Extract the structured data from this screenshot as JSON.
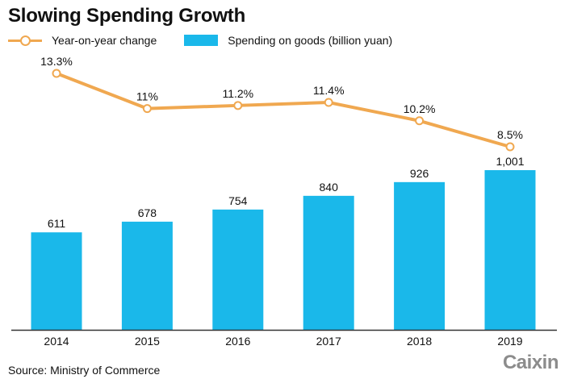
{
  "chart_data": {
    "type": "bar",
    "title": "Slowing Spending Growth",
    "categories": [
      "2014",
      "2015",
      "2016",
      "2017",
      "2018",
      "2019"
    ],
    "series": [
      {
        "name": "Spending on goods (billion yuan)",
        "type": "bar",
        "color": "#1ab8ea",
        "values": [
          611,
          678,
          754,
          840,
          926,
          1001
        ],
        "labels": [
          "611",
          "678",
          "754",
          "840",
          "926",
          "1,001"
        ]
      },
      {
        "name": "Year-on-year change",
        "type": "line",
        "color": "#f0a850",
        "values": [
          13.3,
          11.0,
          11.2,
          11.4,
          10.2,
          8.5
        ],
        "labels": [
          "13.3%",
          "11%",
          "11.2%",
          "11.4%",
          "10.2%",
          "8.5%"
        ]
      }
    ],
    "xlabel": "",
    "ylabel": "",
    "grid": false,
    "legend": "top-left",
    "source": "Source: Ministry of Commerce"
  },
  "legend": {
    "line_label": "Year-on-year change",
    "bar_label": "Spending on goods (billion yuan)"
  },
  "footer": {
    "source": "Source: Ministry of Commerce",
    "logo": "Caixin"
  }
}
